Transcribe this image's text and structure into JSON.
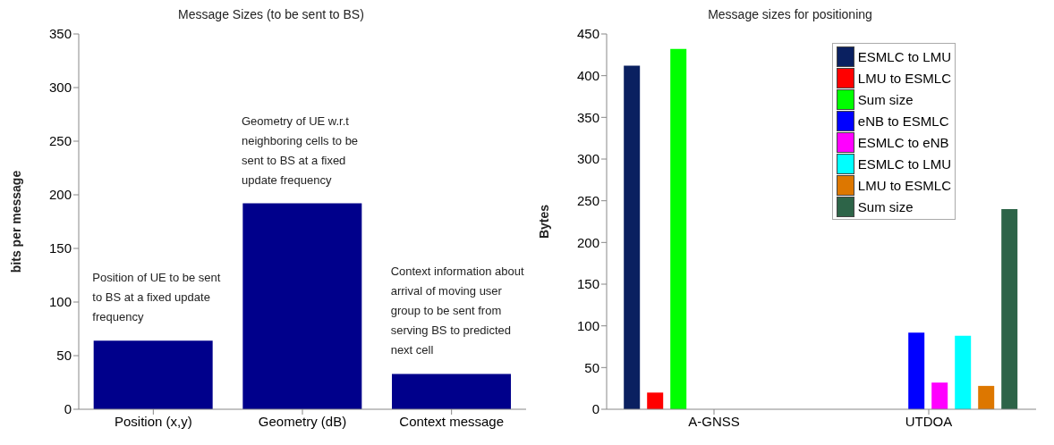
{
  "chart_data": [
    {
      "type": "bar",
      "title": "Message Sizes (to be sent to BS)",
      "ylabel": "bits per message",
      "categories": [
        "Position (x,y)",
        "Geometry (dB)",
        "Context message"
      ],
      "values": [
        64,
        192,
        33
      ],
      "color": "#00008b",
      "ylim": [
        0,
        350
      ],
      "yticks": [
        0,
        50,
        100,
        150,
        200,
        250,
        300,
        350
      ],
      "grid": false,
      "legend": false,
      "annotations": [
        "Position of UE to be sent to BS at a fixed update frequency",
        "Geometry of UE w.r.t neighboring cells to be sent to BS at a fixed update frequency",
        "Context information about arrival of moving user group to be sent from serving BS to predicted next cell"
      ]
    },
    {
      "type": "bar",
      "title": "Message sizes for positioning",
      "ylabel": "Bytes",
      "categories": [
        "A-GNSS",
        "UTDOA"
      ],
      "ylim": [
        0,
        450
      ],
      "yticks": [
        0,
        50,
        100,
        150,
        200,
        250,
        300,
        350,
        400,
        450
      ],
      "grid": false,
      "legend": "top right",
      "series": [
        {
          "name": "ESMLC to LMU",
          "color": "#0a2060",
          "values": [
            412,
            null
          ]
        },
        {
          "name": "LMU to ESMLC",
          "color": "#ff0000",
          "values": [
            20,
            null
          ]
        },
        {
          "name": "Sum size",
          "color": "#00ff00",
          "values": [
            432,
            null
          ]
        },
        {
          "name": "eNB to ESMLC",
          "color": "#0000ff",
          "values": [
            null,
            92
          ]
        },
        {
          "name": "ESMLC to eNB",
          "color": "#ff00ff",
          "values": [
            null,
            32
          ]
        },
        {
          "name": "ESMLC to LMU",
          "color": "#00ffff",
          "values": [
            null,
            88
          ]
        },
        {
          "name": "LMU to ESMLC",
          "color": "#dd7700",
          "values": [
            null,
            28
          ]
        },
        {
          "name": "Sum size",
          "color": "#2d6448",
          "values": [
            null,
            240
          ]
        }
      ]
    }
  ]
}
